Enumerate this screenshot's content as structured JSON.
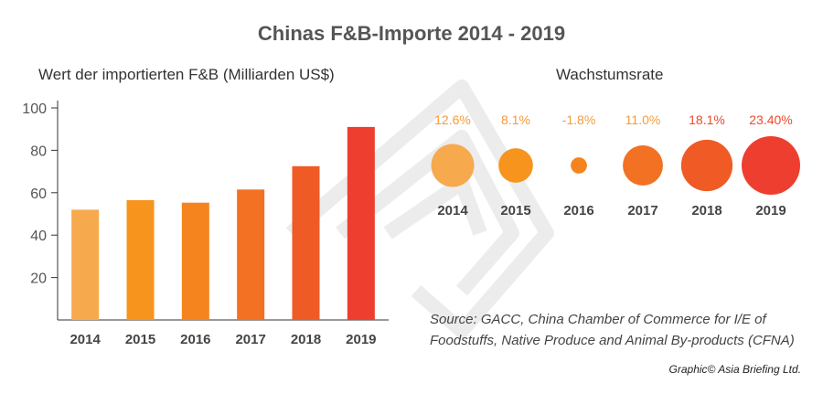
{
  "title": "Chinas F&B-Importe 2014 - 2019",
  "colors": {
    "bars": [
      "#f7a94e",
      "#f7941d",
      "#f5841f",
      "#f37122",
      "#f05a24",
      "#ee3e2f"
    ],
    "rate_labels": [
      "#f59a3a",
      "#f59a3a",
      "#f59a3a",
      "#f59a3a",
      "#ee4a2a",
      "#ee4a2a"
    ],
    "axis": "#333333",
    "watermark": "#ececec"
  },
  "chart_data": [
    {
      "type": "bar",
      "title": "Wert der importierten F&B (Milliarden US$)",
      "categories": [
        "2014",
        "2015",
        "2016",
        "2017",
        "2018",
        "2019"
      ],
      "values": [
        52,
        56.5,
        55.3,
        61.5,
        72.5,
        91
      ],
      "ylim": [
        0,
        100
      ],
      "yticks": [
        20,
        40,
        60,
        80,
        100
      ],
      "xlabel": "",
      "ylabel": "",
      "grid": false
    },
    {
      "type": "scatter",
      "title": "Wachstumsrate",
      "categories": [
        "2014",
        "2015",
        "2016",
        "2017",
        "2018",
        "2019"
      ],
      "values": [
        12.6,
        8.1,
        -1.8,
        11.0,
        18.1,
        23.4
      ],
      "labels": [
        "12.6%",
        "8.1%",
        "-1.8%",
        "11.0%",
        "18.1%",
        "23.40%"
      ]
    }
  ],
  "source": {
    "line1": "Source: GACC, China Chamber of Commerce for I/E of",
    "line2": "Foodstuffs, Native Produce and Animal By-products (CFNA)"
  },
  "credit": "Graphic© Asia Briefing Ltd."
}
